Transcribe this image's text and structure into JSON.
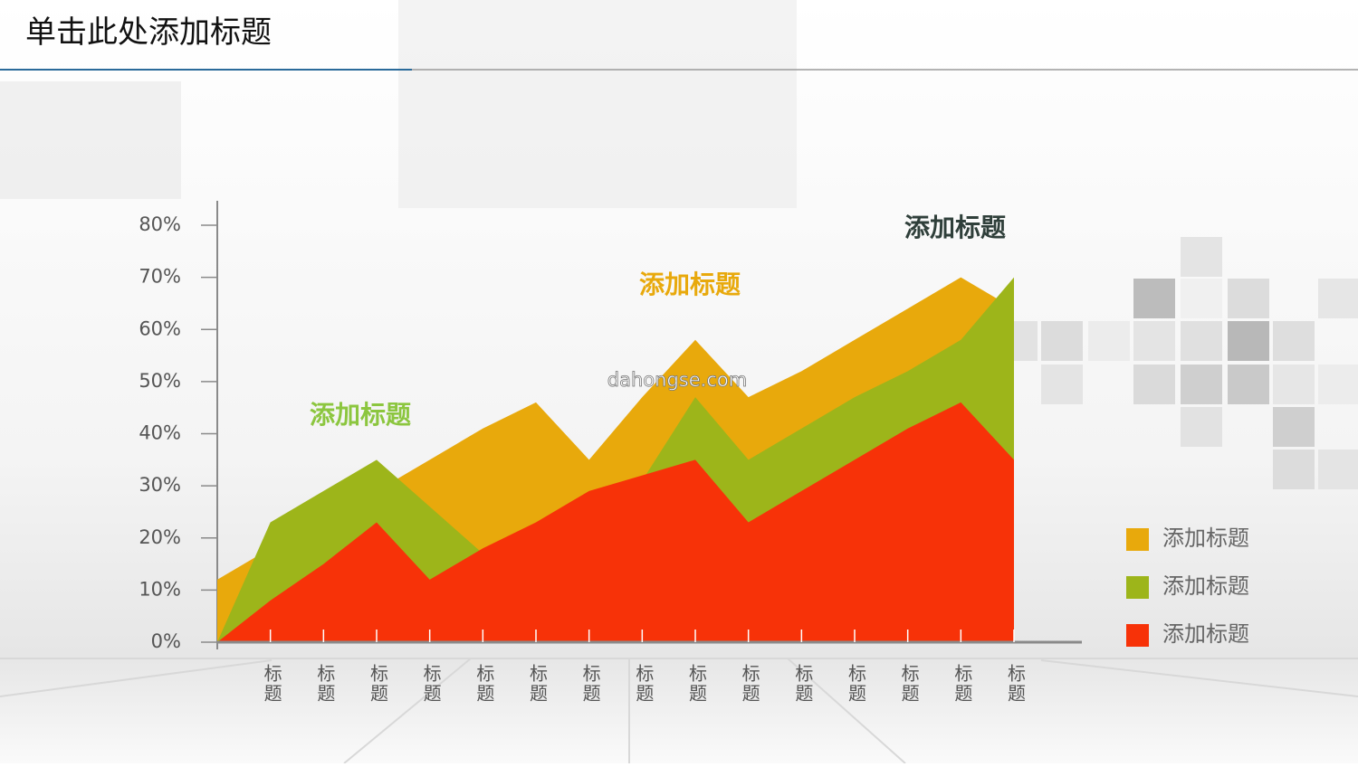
{
  "title": "单击此处添加标题",
  "watermark": "dahongse.com",
  "chart_data": {
    "type": "area",
    "categories": [
      null,
      "标题",
      "标题",
      "标题",
      "标题",
      "标题",
      "标题",
      "标题",
      "标题",
      "标题",
      "标题",
      "标题",
      "标题",
      "标题",
      "标题",
      "标题"
    ],
    "series": [
      {
        "name": "添加标题",
        "color": "#e8a90c",
        "values": [
          12,
          18,
          23,
          29,
          35,
          41,
          46,
          35,
          47,
          58,
          47,
          52,
          58,
          64,
          70,
          64
        ]
      },
      {
        "name": "添加标题",
        "color": "#9db51a",
        "values": [
          0,
          23,
          29,
          35,
          26,
          17,
          20,
          25,
          31,
          47,
          35,
          41,
          47,
          52,
          58,
          70
        ]
      },
      {
        "name": "添加标题",
        "color": "#f73208",
        "values": [
          0,
          8,
          15,
          23,
          12,
          18,
          23,
          29,
          32,
          35,
          23,
          29,
          35,
          41,
          46,
          35
        ]
      }
    ],
    "ylim": [
      0,
      80
    ],
    "yticks": [
      {
        "value": 0,
        "label": "0%"
      },
      {
        "value": 10,
        "label": "10%"
      },
      {
        "value": 20,
        "label": "20%"
      },
      {
        "value": 30,
        "label": "30%"
      },
      {
        "value": 40,
        "label": "40%"
      },
      {
        "value": 50,
        "label": "50%"
      },
      {
        "value": 60,
        "label": "60%"
      },
      {
        "value": 70,
        "label": "70%"
      },
      {
        "value": 80,
        "label": "80%"
      }
    ],
    "annotations": [
      {
        "text": "添加标题",
        "color": "#8cc63f"
      },
      {
        "text": "添加标题",
        "color": "#e8a90c"
      },
      {
        "text": "添加标题",
        "color": "#2f3f3a"
      }
    ]
  }
}
